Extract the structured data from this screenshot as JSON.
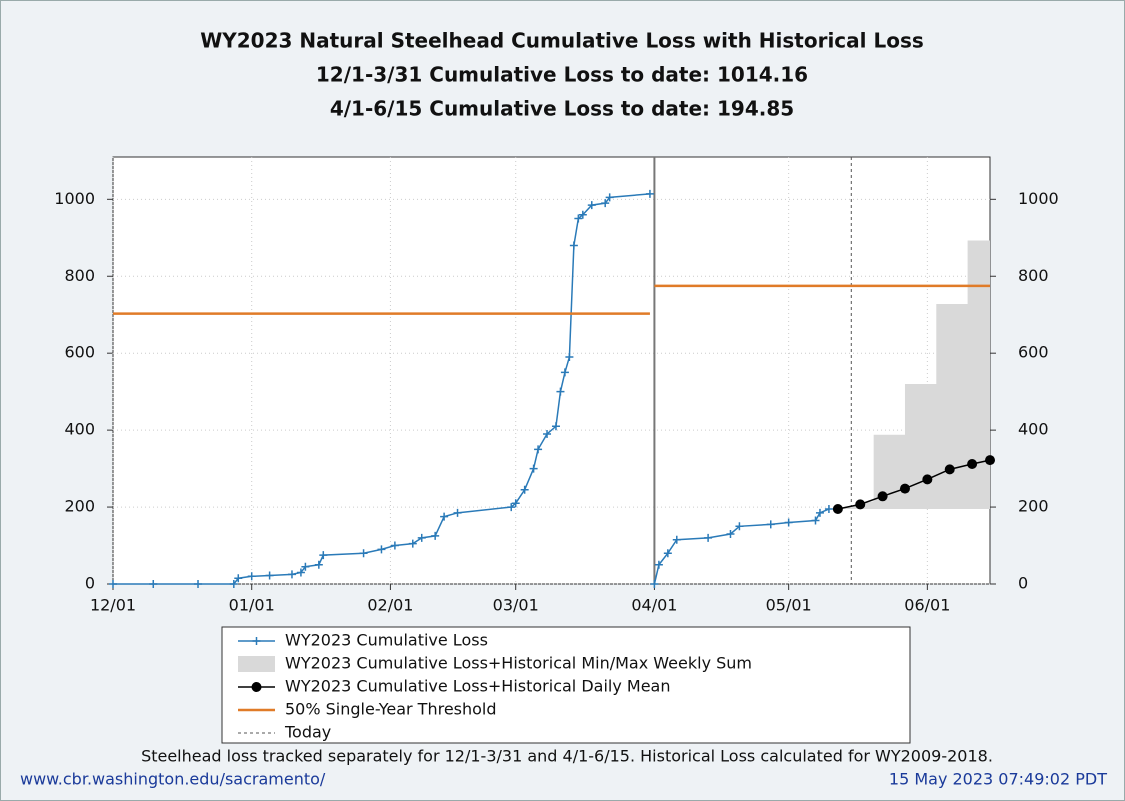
{
  "chart_data": {
    "type": "line",
    "title": "WY2023 Natural Steelhead Cumulative Loss with Historical Loss",
    "subtitles": [
      "12/1-3/31 Cumulative Loss to date: 1014.16",
      "4/1-6/15 Cumulative Loss to date: 194.85"
    ],
    "xlim": [
      "12/01",
      "06/15"
    ],
    "xticks": [
      "12/01",
      "01/01",
      "02/01",
      "03/01",
      "04/01",
      "05/01",
      "06/01"
    ],
    "ylim": [
      0,
      1110
    ],
    "yticks": [
      0,
      200,
      400,
      600,
      800,
      1000
    ],
    "y2lim": [
      0,
      1110
    ],
    "y2ticks": [
      0,
      200,
      400,
      600,
      800,
      1000
    ],
    "grid": true,
    "divider_x": "04/01",
    "series": [
      {
        "name": "WY2023 Cumulative Loss",
        "color": "#2a7ab8",
        "style": "line-plus",
        "x": [
          "12/01",
          "12/10",
          "12/20",
          "12/28",
          "12/29",
          "01/01",
          "01/05",
          "01/10",
          "01/12",
          "01/13",
          "01/16",
          "01/17",
          "01/26",
          "01/30",
          "02/02",
          "02/06",
          "02/08",
          "02/11",
          "02/13",
          "02/16",
          "02/28",
          "03/01",
          "03/03",
          "03/05",
          "03/06",
          "03/08",
          "03/10",
          "03/11",
          "03/12",
          "03/13",
          "03/14",
          "03/15",
          "03/16",
          "03/18",
          "03/21",
          "03/22",
          "03/31",
          null,
          "04/01",
          "04/02",
          "04/04",
          "04/06",
          "04/13",
          "04/18",
          "04/20",
          "04/27",
          "05/01",
          "05/07",
          "05/08",
          "05/10"
        ],
        "values": [
          0,
          0,
          0,
          0,
          15,
          20,
          22,
          25,
          30,
          45,
          50,
          75,
          80,
          90,
          100,
          105,
          120,
          125,
          175,
          185,
          200,
          210,
          245,
          300,
          350,
          390,
          410,
          500,
          550,
          590,
          880,
          950,
          960,
          985,
          990,
          1005,
          1014.16,
          null,
          0,
          50,
          80,
          115,
          120,
          130,
          150,
          155,
          160,
          165,
          185,
          194.85
        ]
      },
      {
        "name": "WY2023 Cumulative Loss+Historical Min/Max Weekly Sum",
        "color": "#d9d9d9",
        "style": "band",
        "x": [
          "05/12",
          "05/20",
          "05/20",
          "05/27",
          "05/27",
          "06/03",
          "06/03",
          "06/10",
          "06/10",
          "06/15"
        ],
        "upper": [
          195,
          215,
          388,
          388,
          520,
          520,
          728,
          728,
          893,
          893
        ],
        "lower": [
          195,
          195,
          195,
          195,
          195,
          195,
          195,
          195,
          195,
          195
        ]
      },
      {
        "name": "WY2023 Cumulative Loss+Historical Daily Mean",
        "color": "#000000",
        "style": "line-dot",
        "x": [
          "05/12",
          "05/17",
          "05/22",
          "05/27",
          "06/01",
          "06/06",
          "06/11",
          "06/15"
        ],
        "values": [
          195,
          207,
          228,
          248,
          272,
          298,
          312,
          322
        ]
      },
      {
        "name": "50% Single-Year Threshold",
        "color": "#e07b28",
        "style": "line",
        "x": [
          "12/01",
          "03/31",
          null,
          "04/01",
          "06/15"
        ],
        "values": [
          703,
          703,
          null,
          775,
          775
        ]
      }
    ],
    "today": {
      "x": "05/15",
      "label": "Today"
    },
    "note": "Steelhead loss tracked separately for 12/1-3/31 and 4/1-6/15. Historical Loss calculated for WY2009-2018.",
    "source": "www.cbr.washington.edu/sacramento/",
    "timestamp": "15 May 2023 07:49:02 PDT"
  }
}
